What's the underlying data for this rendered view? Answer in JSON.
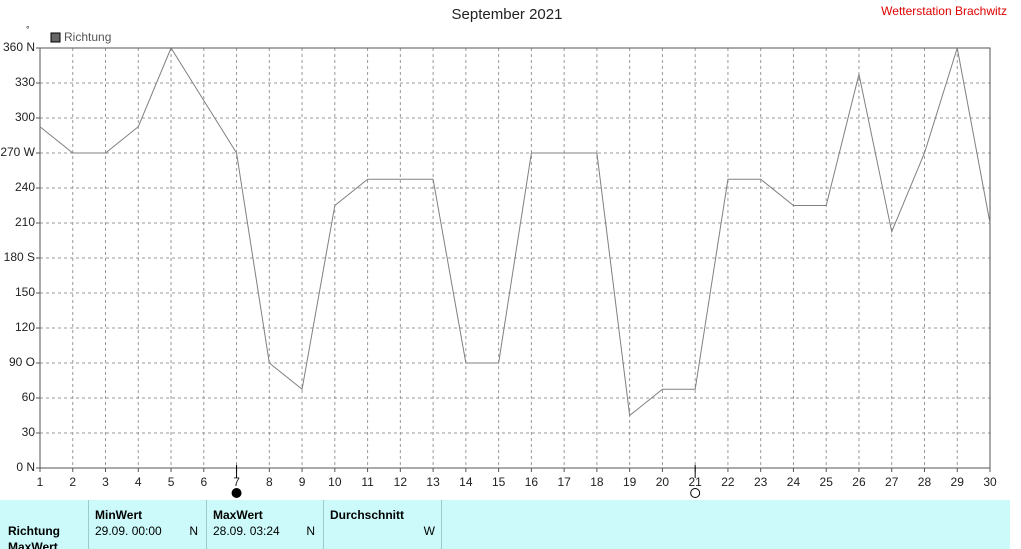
{
  "chart_data": {
    "type": "line",
    "title": "September 2021",
    "station": "Wetterstation Brachwitz",
    "y_unit": "°",
    "legend": "Richtung",
    "x": [
      1,
      2,
      3,
      4,
      5,
      6,
      7,
      8,
      9,
      10,
      11,
      12,
      13,
      14,
      15,
      16,
      17,
      18,
      19,
      20,
      21,
      22,
      23,
      24,
      25,
      26,
      27,
      28,
      29,
      30
    ],
    "xlim": [
      1,
      30
    ],
    "xticks": [
      1,
      2,
      3,
      4,
      5,
      6,
      7,
      8,
      9,
      10,
      11,
      12,
      13,
      14,
      15,
      16,
      17,
      18,
      19,
      20,
      21,
      22,
      23,
      24,
      25,
      26,
      27,
      28,
      29,
      30
    ],
    "series": [
      {
        "name": "Richtung",
        "color": "#808080",
        "values": [
          292.5,
          270,
          270,
          292.5,
          360,
          315,
          270,
          90,
          67.5,
          225,
          247.5,
          247.5,
          247.5,
          90,
          90,
          270,
          270,
          270,
          45,
          67.5,
          67.5,
          247.5,
          247.5,
          225,
          225,
          337.5,
          202.5,
          270,
          360,
          210
        ]
      }
    ],
    "ylim": [
      0,
      360
    ],
    "yticks": [
      {
        "value": 0,
        "label": "0 N"
      },
      30,
      60,
      {
        "value": 90,
        "label": "90 O"
      },
      120,
      150,
      {
        "value": 180,
        "label": "180 S"
      },
      210,
      240,
      {
        "value": 270,
        "label": "270 W"
      },
      300,
      330,
      {
        "value": 360,
        "label": "360 N"
      }
    ],
    "grid": true,
    "markers": [
      {
        "x": 7,
        "style": "filled"
      },
      {
        "x": 21,
        "style": "open"
      }
    ]
  },
  "table": {
    "row_labels": [
      "Richtung",
      "MaxWert"
    ],
    "columns": [
      {
        "header": "MinWert",
        "time": "29.09.  00:00",
        "dir": "N"
      },
      {
        "header": "MaxWert",
        "time": "28.09.  03:24",
        "dir": "N"
      },
      {
        "header": "Durchschnitt",
        "time": "",
        "dir": "W"
      }
    ]
  }
}
